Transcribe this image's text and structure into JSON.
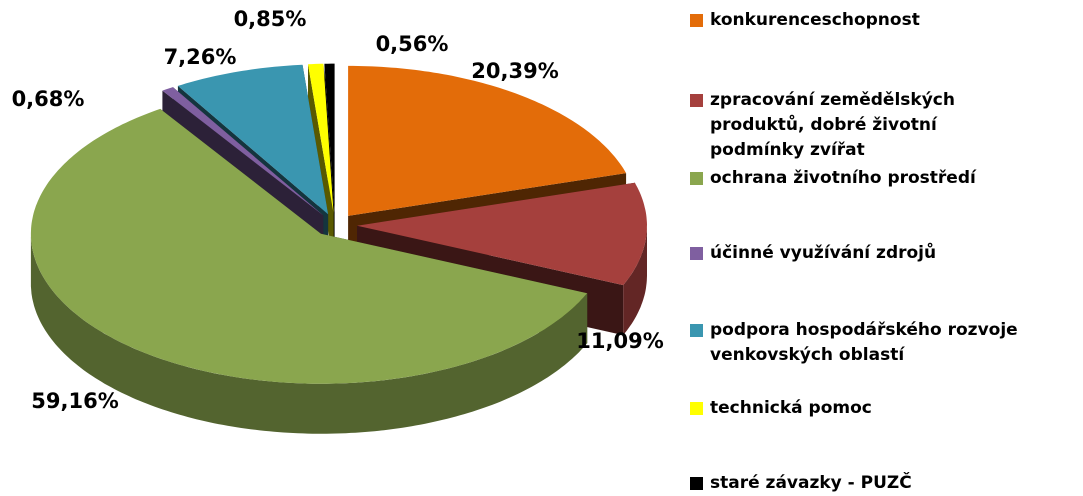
{
  "chart_data": {
    "type": "pie3d",
    "categories": [
      "konkurenceschopnost",
      "zpracování zemědělských produktů, dobré životní podmínky zvířat",
      "ochrana životního prostředí",
      "účinné využívání zdrojů",
      "podpora hospodářského rozvoje venkovských oblastí",
      "technická pomoc",
      "staré závazky - PUZČ"
    ],
    "values": [
      20.39,
      11.09,
      59.16,
      0.68,
      7.26,
      0.85,
      0.56
    ],
    "value_labels": [
      "20,39%",
      "11,09%",
      "59,16%",
      "0,68%",
      "7,26%",
      "0,85%",
      "0,56%"
    ],
    "colors": [
      "#e36c09",
      "#a5403d",
      "#8aa64e",
      "#7f5fa0",
      "#3a96b0",
      "#ffff00",
      "#000000"
    ],
    "legend": "right"
  }
}
